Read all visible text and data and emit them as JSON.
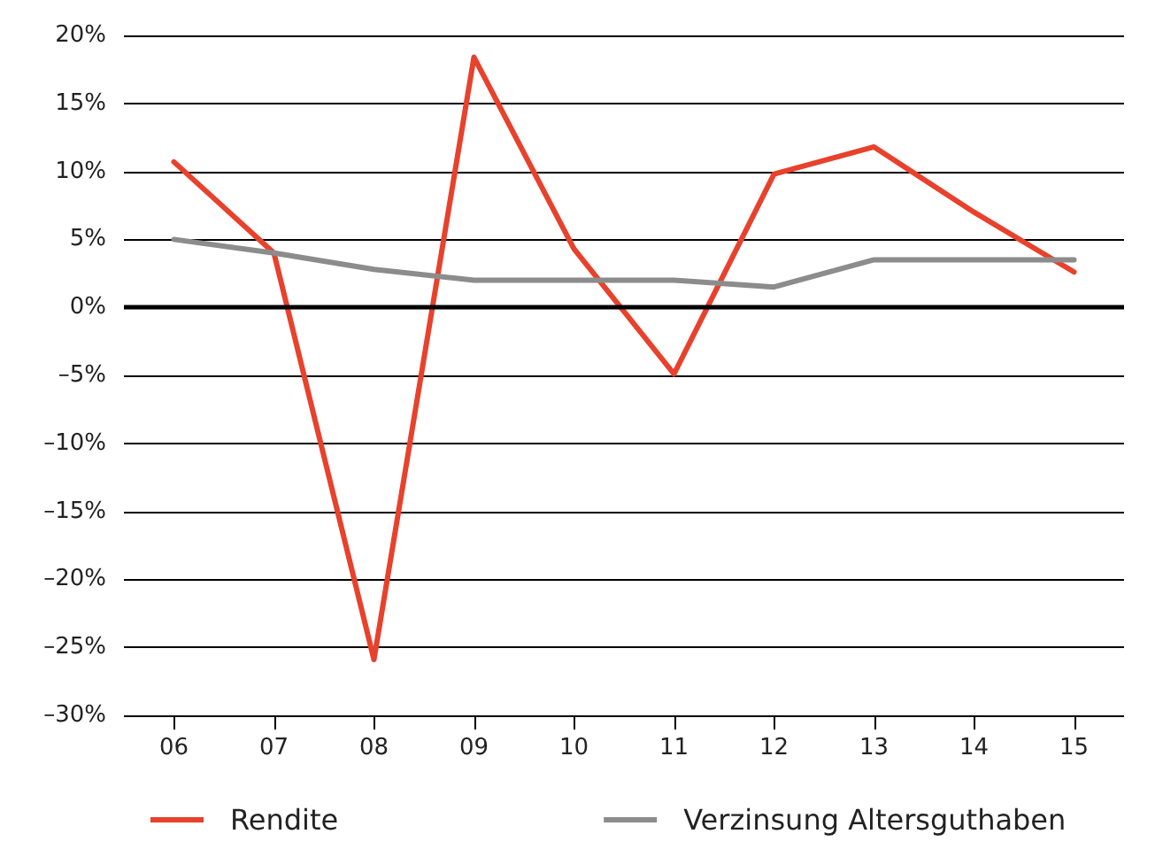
{
  "chart_data": {
    "type": "line",
    "categories": [
      "06",
      "07",
      "08",
      "09",
      "10",
      "11",
      "12",
      "13",
      "14",
      "15"
    ],
    "series": [
      {
        "name": "Rendite",
        "color": "#e8412c",
        "values": [
          10.7,
          4.0,
          -25.9,
          18.4,
          4.3,
          -4.9,
          9.8,
          11.8,
          7.0,
          2.6
        ]
      },
      {
        "name": "Verzinsung Altersguthaben",
        "color": "#8c8c8c",
        "values": [
          5.0,
          4.0,
          2.8,
          2.0,
          2.0,
          2.0,
          1.5,
          3.5,
          3.5,
          3.5
        ]
      }
    ],
    "ylim": [
      -30,
      20
    ],
    "yticks": [
      {
        "value": -30,
        "label": "–30%"
      },
      {
        "value": -25,
        "label": "–25%"
      },
      {
        "value": -20,
        "label": "–20%"
      },
      {
        "value": -15,
        "label": "–15%"
      },
      {
        "value": -10,
        "label": "–10%"
      },
      {
        "value": -5,
        "label": "–5%"
      },
      {
        "value": 0,
        "label": "0%"
      },
      {
        "value": 5,
        "label": "5%"
      },
      {
        "value": 10,
        "label": "10%"
      },
      {
        "value": 15,
        "label": "15%"
      },
      {
        "value": 20,
        "label": "20%"
      }
    ],
    "ref_lines": [
      {
        "axis": "y",
        "value": 0,
        "color": "#000000"
      }
    ],
    "grid": "y",
    "legend": "bottom",
    "marker": "none",
    "line_style": "solid"
  }
}
